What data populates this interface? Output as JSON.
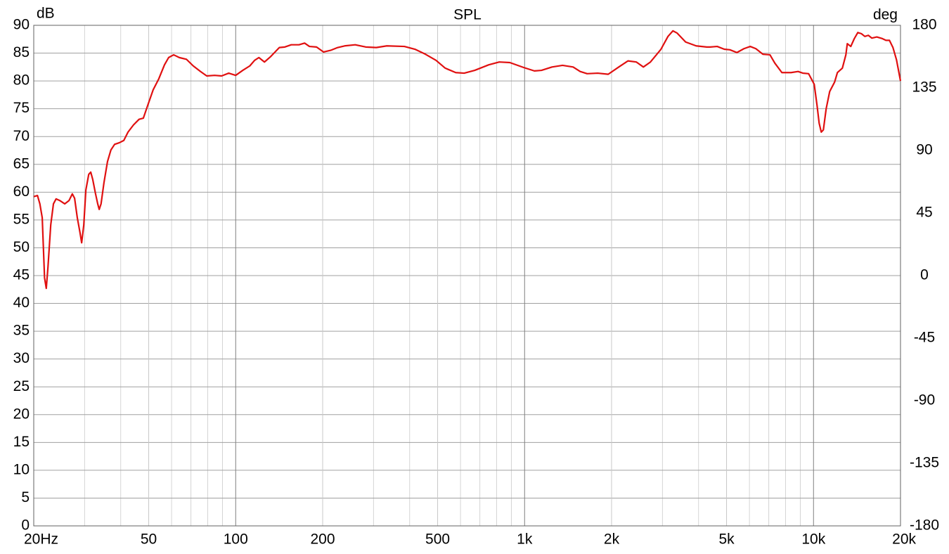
{
  "chart_data": {
    "type": "line",
    "title": "SPL",
    "ylabel": "dB",
    "y2label": "deg",
    "log_x": true,
    "grid": true,
    "xlim": [
      20,
      20000
    ],
    "xticks": [
      {
        "value": 20,
        "label": "20Hz"
      },
      50,
      100,
      200,
      500,
      {
        "value": 1000,
        "label": "1k"
      },
      {
        "value": 2000,
        "label": "2k"
      },
      {
        "value": 5000,
        "label": "5k"
      },
      {
        "value": 10000,
        "label": "10k"
      },
      {
        "value": 20000,
        "label": "20k"
      }
    ],
    "xminorticks": [
      30,
      40,
      60,
      70,
      80,
      90,
      300,
      400,
      600,
      700,
      800,
      900,
      3000,
      4000,
      6000,
      7000,
      8000,
      9000
    ],
    "ylim": [
      0,
      90
    ],
    "yticks": [
      0,
      5,
      10,
      15,
      20,
      25,
      30,
      35,
      40,
      45,
      50,
      55,
      60,
      65,
      70,
      75,
      80,
      85,
      90
    ],
    "y2lim": [
      -180,
      180
    ],
    "y2ticks": [
      -180,
      -135,
      -90,
      -45,
      0,
      45,
      90,
      135,
      180
    ],
    "series": [
      {
        "color": "#e01010",
        "x": [
          20,
          20.6,
          21.0,
          21.4,
          21.8,
          22.1,
          22.4,
          22.9,
          23.4,
          23.9,
          24.6,
          25.6,
          26.5,
          27.2,
          27.7,
          28.3,
          28.9,
          29.3,
          29.8,
          30.3,
          31.0,
          31.5,
          32.0,
          32.7,
          33.3,
          33.7,
          34.2,
          35.0,
          36.0,
          37.0,
          38.1,
          39.6,
          41.0,
          42.4,
          44.3,
          46.3,
          47.9,
          49.6,
          51.8,
          54.2,
          56.7,
          58.6,
          61.0,
          63.8,
          67.5,
          71.3,
          75.5,
          79.4,
          84.5,
          89.4,
          94.6,
          100,
          105.8,
          111.9,
          116.3,
          120.3,
          125.8,
          132.3,
          141.6,
          148.0,
          155.7,
          165.6,
          173.2,
          180.0,
          190.5,
          201.4,
          213.1,
          225.3,
          238.3,
          259.3,
          281.9,
          306.6,
          333.5,
          383.6,
          417.3,
          453.8,
          493.6,
          531.1,
          577.6,
          617.8,
          671.9,
          751.5,
          817.4,
          889.0,
          994.5,
          1081,
          1144,
          1244,
          1353,
          1472,
          1557,
          1646,
          1791,
          1947,
          2118,
          2279,
          2437,
          2577,
          2726,
          2965,
          3135,
          3261,
          3373,
          3608,
          3924,
          4268,
          4389,
          4642,
          4909,
          5135,
          5430,
          5743,
          6039,
          6316,
          6679,
          7066,
          7347,
          7772,
          8360,
          8841,
          9194,
          9616,
          10056,
          10285,
          10459,
          10636,
          10817,
          11060,
          11376,
          11831,
          12098,
          12584,
          12941,
          13088,
          13458,
          13838,
          14232,
          14638,
          15054,
          15478,
          15921,
          16558,
          17318,
          17810,
          18313,
          18835,
          19374,
          20000
        ],
        "values": [
          59.2,
          59.4,
          57.9,
          55.4,
          44.6,
          42.7,
          46.5,
          54.1,
          57.9,
          58.8,
          58.5,
          57.9,
          58.5,
          59.7,
          58.9,
          55.4,
          52.8,
          50.9,
          54.1,
          60.4,
          63.2,
          63.6,
          62.3,
          59.8,
          57.9,
          56.9,
          57.9,
          61.7,
          65.5,
          67.6,
          68.6,
          68.9,
          69.3,
          70.8,
          72.1,
          73.1,
          73.3,
          75.6,
          78.4,
          80.4,
          82.9,
          84.2,
          84.7,
          84.2,
          83.9,
          82.7,
          81.7,
          80.9,
          81.0,
          80.9,
          81.4,
          81.0,
          81.9,
          82.7,
          83.7,
          84.2,
          83.4,
          84.4,
          86.0,
          86.1,
          86.5,
          86.5,
          86.8,
          86.2,
          86.1,
          85.2,
          85.5,
          86.0,
          86.3,
          86.5,
          86.1,
          86.0,
          86.3,
          86.2,
          85.7,
          84.8,
          83.7,
          82.3,
          81.5,
          81.4,
          81.9,
          82.9,
          83.4,
          83.3,
          82.4,
          81.8,
          81.9,
          82.5,
          82.8,
          82.5,
          81.7,
          81.3,
          81.4,
          81.2,
          82.5,
          83.6,
          83.4,
          82.5,
          83.4,
          85.7,
          88.0,
          89.0,
          88.6,
          87.0,
          86.3,
          86.1,
          86.1,
          86.2,
          85.7,
          85.6,
          85.1,
          85.8,
          86.2,
          85.8,
          84.8,
          84.7,
          83.2,
          81.5,
          81.5,
          81.7,
          81.4,
          81.3,
          79.4,
          75.6,
          72.4,
          70.8,
          71.2,
          75.0,
          78.1,
          79.8,
          81.5,
          82.3,
          84.7,
          86.7,
          86.2,
          87.6,
          88.7,
          88.5,
          88.0,
          88.2,
          87.7,
          87.9,
          87.6,
          87.3,
          87.3,
          86.0,
          83.8,
          80.0
        ]
      }
    ]
  }
}
